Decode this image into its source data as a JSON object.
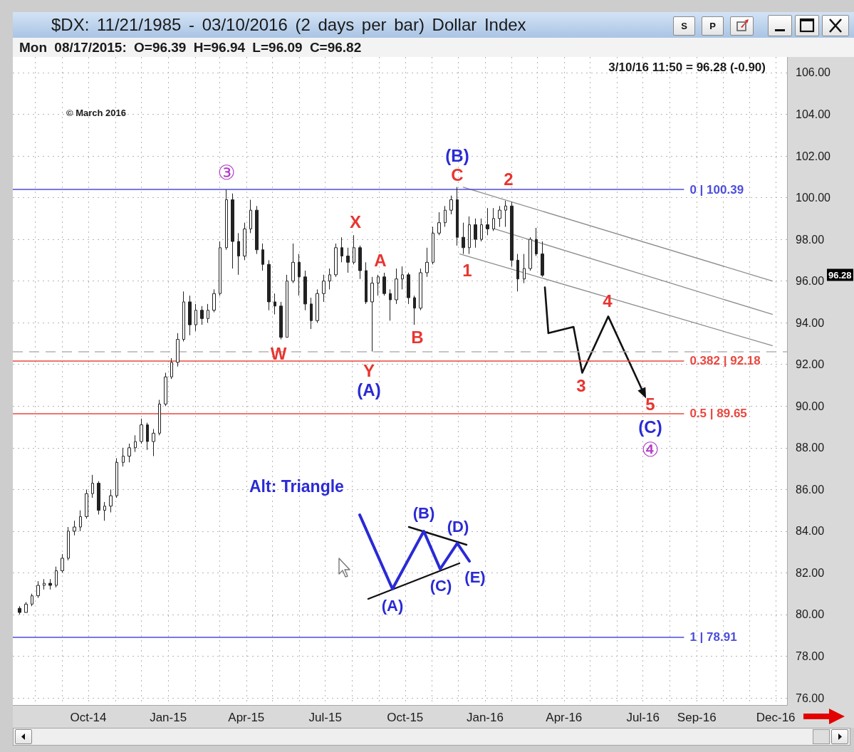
{
  "chart_data": {
    "type": "candlestick",
    "title": "$DX: 11/21/1985 - 03/10/2016 (2 days per bar) Dollar Index",
    "subtitle": "Mon 08/17/2015: O=96.39 H=96.94 L=96.09 C=96.82",
    "x": [
      "2014-07-14",
      "2014-07-21",
      "2014-07-28",
      "2014-08-04",
      "2014-08-11",
      "2014-08-18",
      "2014-08-25",
      "2014-09-01",
      "2014-09-08",
      "2014-09-15",
      "2014-09-22",
      "2014-09-29",
      "2014-10-06",
      "2014-10-13",
      "2014-10-20",
      "2014-10-27",
      "2014-11-03",
      "2014-11-10",
      "2014-11-17",
      "2014-11-24",
      "2014-12-01",
      "2014-12-08",
      "2014-12-15",
      "2014-12-22",
      "2014-12-29",
      "2015-01-05",
      "2015-01-12",
      "2015-01-19",
      "2015-01-26",
      "2015-02-02",
      "2015-02-09",
      "2015-02-16",
      "2015-02-23",
      "2015-03-02",
      "2015-03-09",
      "2015-03-16",
      "2015-03-23",
      "2015-03-30",
      "2015-04-06",
      "2015-04-13",
      "2015-04-20",
      "2015-04-27",
      "2015-05-04",
      "2015-05-11",
      "2015-05-18",
      "2015-05-25",
      "2015-06-01",
      "2015-06-08",
      "2015-06-15",
      "2015-06-22",
      "2015-06-29",
      "2015-07-06",
      "2015-07-13",
      "2015-07-20",
      "2015-07-27",
      "2015-08-03",
      "2015-08-10",
      "2015-08-17",
      "2015-08-24",
      "2015-08-31",
      "2015-09-07",
      "2015-09-14",
      "2015-09-21",
      "2015-09-28",
      "2015-10-05",
      "2015-10-12",
      "2015-10-19",
      "2015-10-26",
      "2015-11-02",
      "2015-11-09",
      "2015-11-16",
      "2015-11-23",
      "2015-11-30",
      "2015-12-07",
      "2015-12-14",
      "2015-12-21",
      "2015-12-28",
      "2016-01-04",
      "2016-01-11",
      "2016-01-18",
      "2016-01-25",
      "2016-02-01",
      "2016-02-08",
      "2016-02-15",
      "2016-02-22",
      "2016-02-29",
      "2016-03-07"
    ],
    "ohlc": [
      [
        80.3,
        80.4,
        80.0,
        80.1
      ],
      [
        80.1,
        80.6,
        80.1,
        80.5
      ],
      [
        80.5,
        81.0,
        80.4,
        80.9
      ],
      [
        80.9,
        81.6,
        80.8,
        81.4
      ],
      [
        81.4,
        81.7,
        81.2,
        81.5
      ],
      [
        81.5,
        81.7,
        81.2,
        81.4
      ],
      [
        81.4,
        82.3,
        81.3,
        82.1
      ],
      [
        82.1,
        82.9,
        82.0,
        82.7
      ],
      [
        82.7,
        84.2,
        82.6,
        84.0
      ],
      [
        84.0,
        84.5,
        83.8,
        84.2
      ],
      [
        84.2,
        85.0,
        84.0,
        84.7
      ],
      [
        84.7,
        86.0,
        84.6,
        85.8
      ],
      [
        85.8,
        86.7,
        85.6,
        86.3
      ],
      [
        86.3,
        86.4,
        84.8,
        85.0
      ],
      [
        85.0,
        85.4,
        84.5,
        85.2
      ],
      [
        85.2,
        86.0,
        84.9,
        85.7
      ],
      [
        85.7,
        87.5,
        85.6,
        87.3
      ],
      [
        87.3,
        88.0,
        87.1,
        87.6
      ],
      [
        87.6,
        88.2,
        87.3,
        88.0
      ],
      [
        88.0,
        88.6,
        87.8,
        88.3
      ],
      [
        88.3,
        89.4,
        88.2,
        89.1
      ],
      [
        89.1,
        89.2,
        87.9,
        88.3
      ],
      [
        88.3,
        88.9,
        87.6,
        88.7
      ],
      [
        88.7,
        90.3,
        88.6,
        90.1
      ],
      [
        90.1,
        91.6,
        90.0,
        91.4
      ],
      [
        91.4,
        92.3,
        91.3,
        92.1
      ],
      [
        92.1,
        93.5,
        91.9,
        93.2
      ],
      [
        93.2,
        95.5,
        93.1,
        95.0
      ],
      [
        95.0,
        95.3,
        93.4,
        93.9
      ],
      [
        93.9,
        94.9,
        93.6,
        94.6
      ],
      [
        94.6,
        94.8,
        93.9,
        94.2
      ],
      [
        94.2,
        94.9,
        94.0,
        94.6
      ],
      [
        94.6,
        95.6,
        94.5,
        95.4
      ],
      [
        95.4,
        97.9,
        95.3,
        97.6
      ],
      [
        97.6,
        100.39,
        97.5,
        99.9
      ],
      [
        99.9,
        100.2,
        96.6,
        97.9
      ],
      [
        97.9,
        98.3,
        96.3,
        97.2
      ],
      [
        97.2,
        98.8,
        97.0,
        98.5
      ],
      [
        98.5,
        99.9,
        98.3,
        99.4
      ],
      [
        99.4,
        99.6,
        97.3,
        97.5
      ],
      [
        97.5,
        97.8,
        96.5,
        96.8
      ],
      [
        96.8,
        97.0,
        94.6,
        95.0
      ],
      [
        95.0,
        95.4,
        94.4,
        94.8
      ],
      [
        94.8,
        95.0,
        93.2,
        93.3
      ],
      [
        93.3,
        96.3,
        93.3,
        96.0
      ],
      [
        96.0,
        97.8,
        95.9,
        96.9
      ],
      [
        96.9,
        97.3,
        95.3,
        96.2
      ],
      [
        96.2,
        96.5,
        94.6,
        94.9
      ],
      [
        94.9,
        95.2,
        93.7,
        94.1
      ],
      [
        94.1,
        95.6,
        94.0,
        95.4
      ],
      [
        95.4,
        96.3,
        95.0,
        96.0
      ],
      [
        96.0,
        96.6,
        95.6,
        96.3
      ],
      [
        96.3,
        97.8,
        96.2,
        97.6
      ],
      [
        97.6,
        98.1,
        96.9,
        97.2
      ],
      [
        97.2,
        97.6,
        96.4,
        96.9
      ],
      [
        96.9,
        98.2,
        96.8,
        97.6
      ],
      [
        97.6,
        97.7,
        96.1,
        96.5
      ],
      [
        96.5,
        96.9,
        94.9,
        95.0
      ],
      [
        95.0,
        96.2,
        92.62,
        95.9
      ],
      [
        95.9,
        96.3,
        95.3,
        96.2
      ],
      [
        96.2,
        96.4,
        95.3,
        95.4
      ],
      [
        95.4,
        95.6,
        94.1,
        95.1
      ],
      [
        95.1,
        96.6,
        94.9,
        96.1
      ],
      [
        96.1,
        96.7,
        95.6,
        96.3
      ],
      [
        96.3,
        96.4,
        94.9,
        95.2
      ],
      [
        95.2,
        95.3,
        93.9,
        94.7
      ],
      [
        94.7,
        96.6,
        94.6,
        96.4
      ],
      [
        96.4,
        97.6,
        96.2,
        96.9
      ],
      [
        96.9,
        98.6,
        96.8,
        98.3
      ],
      [
        98.3,
        99.3,
        98.2,
        98.8
      ],
      [
        98.8,
        99.6,
        98.6,
        99.4
      ],
      [
        99.4,
        100.1,
        99.2,
        99.9
      ],
      [
        99.9,
        100.51,
        97.7,
        98.1
      ],
      [
        98.1,
        98.8,
        97.3,
        97.6
      ],
      [
        97.6,
        99.1,
        97.3,
        98.7
      ],
      [
        98.7,
        99.0,
        97.6,
        98.0
      ],
      [
        98.0,
        99.0,
        97.9,
        98.7
      ],
      [
        98.7,
        99.5,
        98.2,
        98.5
      ],
      [
        98.5,
        99.5,
        98.4,
        99.0
      ],
      [
        99.0,
        99.6,
        98.6,
        99.4
      ],
      [
        99.4,
        99.85,
        98.6,
        99.6
      ],
      [
        99.6,
        99.8,
        96.7,
        97.0
      ],
      [
        97.0,
        97.3,
        95.5,
        96.1
      ],
      [
        96.1,
        97.3,
        95.9,
        96.6
      ],
      [
        96.6,
        98.1,
        96.5,
        98.0
      ],
      [
        98.0,
        98.55,
        97.2,
        97.3
      ],
      [
        97.3,
        97.9,
        96.2,
        96.28
      ]
    ],
    "color": "#222222",
    "series": [
      {
        "type": "line",
        "x": [
          "2015-12-07",
          "2016-11-27"
        ],
        "values": [
          100.5,
          96.0
        ],
        "color": "#8c8c8c"
      },
      {
        "type": "line",
        "x": [
          "2016-01-12",
          "2016-11-27"
        ],
        "values": [
          98.5,
          94.4
        ],
        "color": "#8c8c8c"
      },
      {
        "type": "line",
        "x": [
          "2015-12-03",
          "2016-11-27"
        ],
        "values": [
          97.3,
          92.9
        ],
        "color": "#8c8c8c"
      },
      {
        "type": "line",
        "x": [
          "2016-03-10",
          "2016-03-14",
          "2016-04-12",
          "2016-04-22",
          "2016-05-22",
          "2016-07-02"
        ],
        "values": [
          95.7,
          93.5,
          93.8,
          91.6,
          94.3,
          90.6
        ],
        "color": "#111111"
      }
    ],
    "ref_lines": [
      {
        "axis": "y",
        "value": 100.39,
        "label": "0 | 100.39",
        "color": "#4d4ddb"
      },
      {
        "axis": "y",
        "value": 92.18,
        "label": "0.382 | 92.18",
        "color": "#e8483f"
      },
      {
        "axis": "y",
        "value": 89.65,
        "label": "0.5 | 89.65",
        "color": "#e8483f"
      },
      {
        "axis": "y",
        "value": 78.91,
        "label": "1 | 78.91",
        "color": "#4d4ddb"
      },
      {
        "axis": "y",
        "value": 92.62,
        "color": "#b4b4b4",
        "line_style": "dashed"
      }
    ],
    "annotations": [
      "3/10/16 11:50 = 96.28 (-0.90)",
      "© March 2016",
      "Alt: Triangle",
      "(A)",
      "(B)",
      "(C)",
      "(D)",
      "(E)",
      "S",
      "P",
      "③",
      "W",
      "X",
      "Y",
      "A",
      "B",
      "C",
      "1",
      "2",
      "3",
      "4",
      "5",
      "(A)",
      "(B)",
      "(C)",
      "④",
      "96.28"
    ],
    "xlim": [
      "2014-07-06",
      "2016-12-14"
    ],
    "ylim": [
      75.66,
      106.75
    ],
    "xticks": [
      {
        "value": "2014-08-01",
        "label": null
      },
      {
        "value": "2014-09-01",
        "label": null
      },
      {
        "value": "2014-10-01",
        "label": "Oct-14"
      },
      {
        "value": "2014-11-01",
        "label": null
      },
      {
        "value": "2014-12-01",
        "label": null
      },
      {
        "value": "2015-01-01",
        "label": "Jan-15"
      },
      {
        "value": "2015-02-01",
        "label": null
      },
      {
        "value": "2015-03-01",
        "label": null
      },
      {
        "value": "2015-04-01",
        "label": "Apr-15"
      },
      {
        "value": "2015-05-01",
        "label": null
      },
      {
        "value": "2015-06-01",
        "label": null
      },
      {
        "value": "2015-07-01",
        "label": "Jul-15"
      },
      {
        "value": "2015-08-01",
        "label": null
      },
      {
        "value": "2015-09-01",
        "label": null
      },
      {
        "value": "2015-10-01",
        "label": "Oct-15"
      },
      {
        "value": "2015-11-01",
        "label": null
      },
      {
        "value": "2015-12-01",
        "label": null
      },
      {
        "value": "2016-01-01",
        "label": "Jan-16"
      },
      {
        "value": "2016-02-01",
        "label": null
      },
      {
        "value": "2016-03-01",
        "label": null
      },
      {
        "value": "2016-04-01",
        "label": "Apr-16"
      },
      {
        "value": "2016-05-01",
        "label": null
      },
      {
        "value": "2016-06-01",
        "label": null
      },
      {
        "value": "2016-07-01",
        "label": "Jul-16"
      },
      {
        "value": "2016-08-01",
        "label": null
      },
      {
        "value": "2016-09-01",
        "label": "Sep-16"
      },
      {
        "value": "2016-10-01",
        "label": null
      },
      {
        "value": "2016-11-01",
        "label": null
      },
      {
        "value": "2016-12-01",
        "label": "Dec-16"
      }
    ],
    "yticks": [
      {
        "value": 76,
        "label": "76.00"
      },
      {
        "value": 78,
        "label": "78.00"
      },
      {
        "value": 80,
        "label": "80.00"
      },
      {
        "value": 82,
        "label": "82.00"
      },
      {
        "value": 84,
        "label": "84.00"
      },
      {
        "value": 86,
        "label": "86.00"
      },
      {
        "value": 88,
        "label": "88.00"
      },
      {
        "value": 90,
        "label": "90.00"
      },
      {
        "value": 92,
        "label": "92.00"
      },
      {
        "value": 94,
        "label": "94.00"
      },
      {
        "value": 96,
        "label": "96.00"
      },
      {
        "value": 98,
        "label": "98.00"
      },
      {
        "value": 100,
        "label": "100.00"
      },
      {
        "value": 102,
        "label": "102.00"
      },
      {
        "value": 104,
        "label": "104.00"
      },
      {
        "value": 106,
        "label": "106.00"
      }
    ],
    "grid": true
  }
}
